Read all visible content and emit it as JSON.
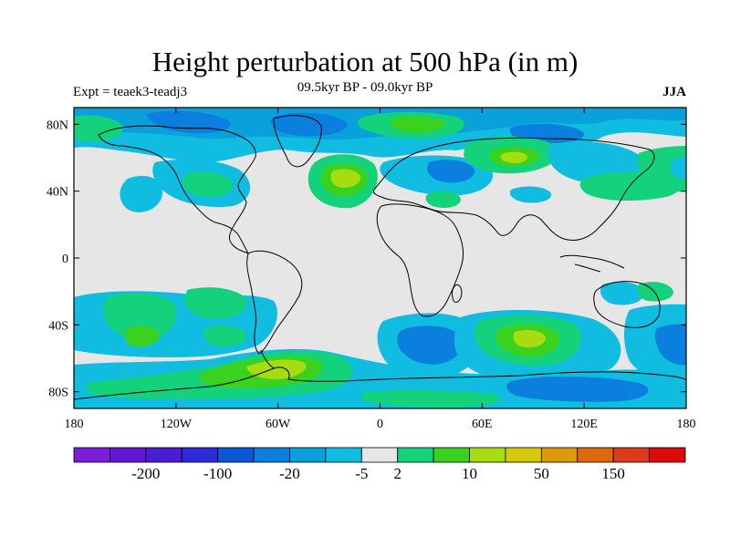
{
  "header": {
    "title": "Height perturbation at 500 hPa (in m)",
    "experiment": "Expt = teaek3-teadj3",
    "period": "09.5kyr BP - 09.0kyr BP",
    "season": "JJA"
  },
  "map": {
    "projection": "cylindrical-equidistant",
    "lon_range": [
      -180,
      180
    ],
    "lat_range": [
      -90,
      90
    ],
    "lon_ticks": [
      {
        "value": -180,
        "label": "180"
      },
      {
        "value": -120,
        "label": "120W"
      },
      {
        "value": -60,
        "label": "60W"
      },
      {
        "value": 0,
        "label": "0"
      },
      {
        "value": 60,
        "label": "60E"
      },
      {
        "value": 120,
        "label": "120E"
      },
      {
        "value": 180,
        "label": "180"
      }
    ],
    "lat_ticks": [
      {
        "value": 80,
        "label": "80N"
      },
      {
        "value": 40,
        "label": "40N"
      },
      {
        "value": 0,
        "label": "0"
      },
      {
        "value": -40,
        "label": "40S"
      },
      {
        "value": -80,
        "label": "80S"
      }
    ],
    "background_color": "#e6e6e6",
    "coastline_color": "#000000"
  },
  "colorbar": {
    "colors": [
      "#7b1fd6",
      "#6414d2",
      "#4a1dd2",
      "#2d2ad8",
      "#0b57d6",
      "#0a7fde",
      "#0aa0dc",
      "#10bde0",
      "#e6e6e6",
      "#14d27c",
      "#3ad21e",
      "#a6dc10",
      "#d6c80a",
      "#dc9a0a",
      "#dc6a0a",
      "#dc3a1c",
      "#dc0a0a"
    ],
    "labels": [
      {
        "after_box": 2,
        "text": "-200"
      },
      {
        "after_box": 4,
        "text": "-100"
      },
      {
        "after_box": 6,
        "text": "-20"
      },
      {
        "after_box": 8,
        "text": "-5"
      },
      {
        "after_box": 9,
        "text": "2"
      },
      {
        "after_box": 11,
        "text": "10"
      },
      {
        "after_box": 13,
        "text": "50"
      },
      {
        "after_box": 15,
        "text": "150"
      }
    ]
  }
}
